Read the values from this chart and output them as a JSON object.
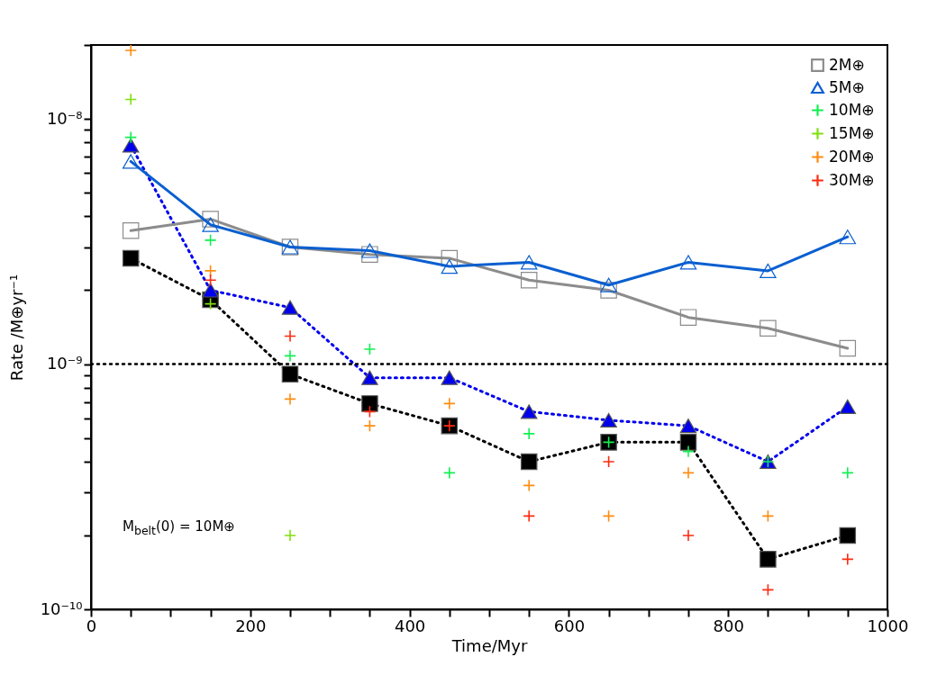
{
  "chart_data": {
    "type": "line",
    "xlabel": "Time/Myr",
    "ylabel": "Rate  /M⊕yr⁻¹",
    "x": [
      50,
      150,
      250,
      350,
      450,
      550,
      650,
      750,
      850,
      950
    ],
    "xlim": [
      0,
      1000
    ],
    "xticks": [
      0,
      {
        "value": 50,
        "label": null
      },
      {
        "value": 100,
        "label": null
      },
      {
        "value": 150,
        "label": null
      },
      200,
      {
        "value": 250,
        "label": null
      },
      {
        "value": 300,
        "label": null
      },
      {
        "value": 350,
        "label": null
      },
      400,
      {
        "value": 450,
        "label": null
      },
      {
        "value": 500,
        "label": null
      },
      {
        "value": 550,
        "label": null
      },
      600,
      {
        "value": 650,
        "label": null
      },
      {
        "value": 700,
        "label": null
      },
      {
        "value": 750,
        "label": null
      },
      800,
      {
        "value": 850,
        "label": null
      },
      {
        "value": 900,
        "label": null
      },
      {
        "value": 950,
        "label": null
      },
      1000
    ],
    "log": true,
    "ylim": [
      1e-10,
      2e-08
    ],
    "yticks": [
      {
        "value": 1e-10,
        "label": "10⁻¹⁰"
      },
      {
        "value": 2e-10,
        "label": null
      },
      {
        "value": 3e-10,
        "label": null
      },
      {
        "value": 4e-10,
        "label": null
      },
      {
        "value": 5e-10,
        "label": null
      },
      {
        "value": 6e-10,
        "label": null
      },
      {
        "value": 7e-10,
        "label": null
      },
      {
        "value": 8e-10,
        "label": null
      },
      {
        "value": 9e-10,
        "label": null
      },
      {
        "value": 1e-09,
        "label": "10⁻⁹"
      },
      {
        "value": 2e-09,
        "label": null
      },
      {
        "value": 3e-09,
        "label": null
      },
      {
        "value": 4e-09,
        "label": null
      },
      {
        "value": 5e-09,
        "label": null
      },
      {
        "value": 6e-09,
        "label": null
      },
      {
        "value": 7e-09,
        "label": null
      },
      {
        "value": 8e-09,
        "label": null
      },
      {
        "value": 9e-09,
        "label": null
      },
      {
        "value": 1e-08,
        "label": "10⁻⁸"
      },
      {
        "value": 2e-08,
        "label": null
      }
    ],
    "grid": false,
    "legend": "top right",
    "ref_lines": [
      {
        "axis": "y",
        "value": 1e-09,
        "color": "#000000",
        "line_style": "dotted"
      }
    ],
    "annotations": [
      "M$_{belt}$(0) = 10M⊕"
    ],
    "series": [
      {
        "name": "2M⊕",
        "marker": "square",
        "line_style": "solid",
        "color": "#8c8c8c",
        "values": [
          3.5e-09,
          3.9e-09,
          3e-09,
          2.8e-09,
          2.7e-09,
          2.2e-09,
          2e-09,
          1.55e-09,
          1.4e-09,
          1.16e-09
        ]
      },
      {
        "name": "5M⊕",
        "marker": "triangle",
        "line_style": "solid",
        "color": "#0a5fd0",
        "values": [
          6.7e-09,
          3.7e-09,
          3e-09,
          2.9e-09,
          2.5e-09,
          2.6e-09,
          2.1e-09,
          2.6e-09,
          2.4e-09,
          3.3e-09
        ]
      },
      {
        "name": "10M⊕",
        "type": "scatter",
        "marker": "cross",
        "color": "#10f050",
        "values": [
          8.4e-09,
          3.2e-09,
          1.08e-09,
          1.15e-09,
          3.6e-10,
          5.2e-10,
          4.8e-10,
          4.4e-10,
          4e-10,
          3.6e-10
        ]
      },
      {
        "name": "15M⊕",
        "type": "scatter",
        "marker": "cross",
        "color": "#80e010",
        "values": [
          1.2e-08,
          1.76e-09,
          2e-10,
          null,
          null,
          null,
          null,
          null,
          null,
          null
        ]
      },
      {
        "name": "20M⊕",
        "type": "scatter",
        "marker": "cross",
        "color": "#ff8c10",
        "values": [
          1.9e-08,
          2.4e-09,
          7.2e-10,
          5.6e-10,
          6.9e-10,
          3.2e-10,
          2.4e-10,
          3.6e-10,
          2.4e-10,
          null
        ]
      },
      {
        "name": "30M⊕",
        "type": "scatter",
        "marker": "cross",
        "color": "#ff2a10",
        "values": [
          null,
          2.2e-09,
          1.3e-09,
          6.4e-10,
          5.6e-10,
          2.4e-10,
          4e-10,
          2e-10,
          1.2e-10,
          1.6e-10
        ]
      },
      {
        "marker": "square",
        "line_style": "dotted",
        "color": "#000000",
        "values": [
          2.7e-09,
          1.83e-09,
          9.1e-10,
          6.9e-10,
          5.6e-10,
          4e-10,
          4.8e-10,
          4.8e-10,
          1.6e-10,
          2e-10
        ]
      },
      {
        "marker": "triangle",
        "line_style": "dotted",
        "color": "#0000ee",
        "values": [
          7.8e-09,
          2e-09,
          1.7e-09,
          8.8e-10,
          8.8e-10,
          6.4e-10,
          5.9e-10,
          5.6e-10,
          4e-10,
          6.7e-10
        ]
      }
    ]
  }
}
